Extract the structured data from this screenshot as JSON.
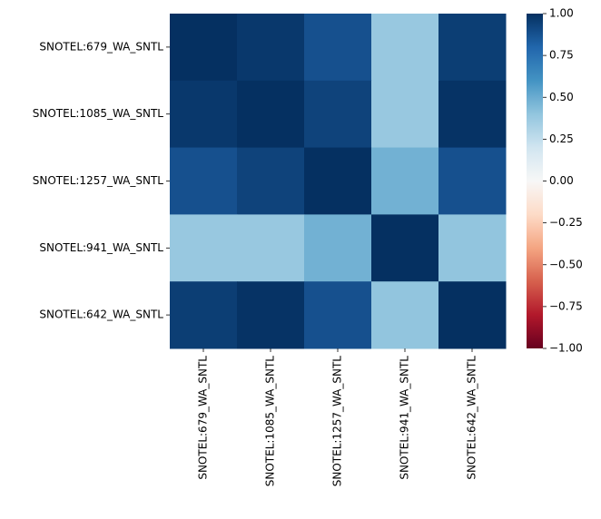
{
  "chart_data": {
    "type": "heatmap",
    "x": [
      "SNOTEL:679_WA_SNTL",
      "SNOTEL:1085_WA_SNTL",
      "SNOTEL:1257_WA_SNTL",
      "SNOTEL:941_WA_SNTL",
      "SNOTEL:642_WA_SNTL"
    ],
    "y": [
      "SNOTEL:679_WA_SNTL",
      "SNOTEL:1085_WA_SNTL",
      "SNOTEL:1257_WA_SNTL",
      "SNOTEL:941_WA_SNTL",
      "SNOTEL:642_WA_SNTL"
    ],
    "values": [
      [
        1,
        0.97,
        0.88,
        0.38,
        0.95
      ],
      [
        0.97,
        1,
        0.93,
        0.38,
        0.99
      ],
      [
        0.88,
        0.93,
        1,
        0.48,
        0.88
      ],
      [
        0.38,
        0.38,
        0.48,
        1,
        0.4
      ],
      [
        0.95,
        0.99,
        0.88,
        0.4,
        1
      ]
    ],
    "colormap": "RdBu",
    "zlim": [
      -1,
      1
    ],
    "colorbar_ticks": [
      {
        "value": 1,
        "label": "1.00"
      },
      {
        "value": 0.75,
        "label": "0.75"
      },
      {
        "value": 0.5,
        "label": "0.50"
      },
      {
        "value": 0.25,
        "label": "0.25"
      },
      {
        "value": 0,
        "label": "0.00"
      },
      {
        "value": -0.25,
        "label": "−0.25"
      },
      {
        "value": -0.5,
        "label": "−0.50"
      },
      {
        "value": -0.75,
        "label": "−0.75"
      },
      {
        "value": -1,
        "label": "−1.00"
      }
    ]
  }
}
